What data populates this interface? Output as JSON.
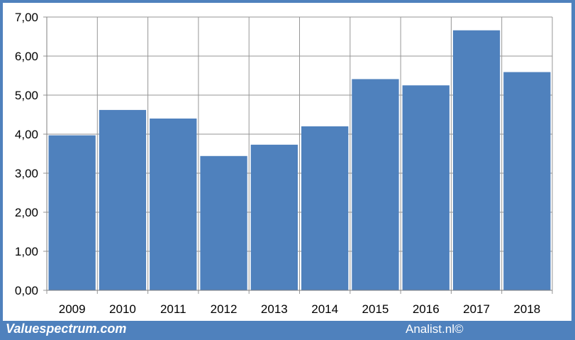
{
  "footer": {
    "brand": "Valuespectrum.com",
    "source": "Analist.nl©"
  },
  "colors": {
    "frame": "#4f81bd",
    "bar": "#4f81bd",
    "grid": "#969696"
  },
  "chart_data": {
    "type": "bar",
    "categories": [
      "2009",
      "2010",
      "2011",
      "2012",
      "2013",
      "2014",
      "2015",
      "2016",
      "2017",
      "2018"
    ],
    "values": [
      3.97,
      4.62,
      4.4,
      3.44,
      3.73,
      4.2,
      5.41,
      5.25,
      6.66,
      5.59
    ],
    "ylim": [
      0,
      7
    ],
    "yticks": [
      "0,00",
      "1,00",
      "2,00",
      "3,00",
      "4,00",
      "5,00",
      "6,00",
      "7,00"
    ],
    "grid": true,
    "legend": "none"
  }
}
